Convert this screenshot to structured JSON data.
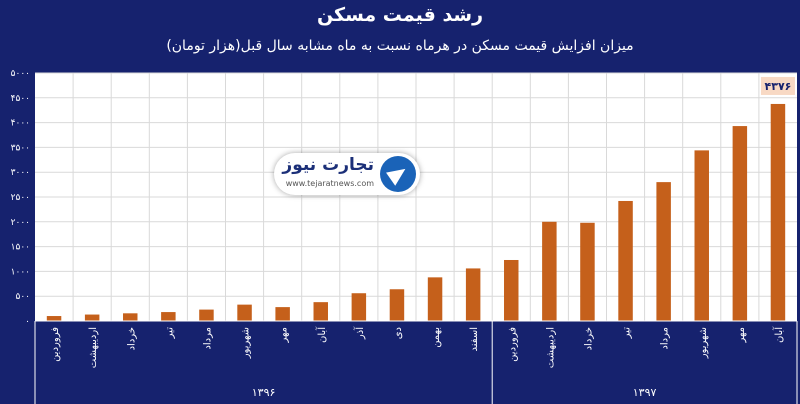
{
  "title": "رشد قیمت مسکن",
  "subtitle": "میزان افزایش قیمت مسکن در هرماه نسبت به ماه مشابه سال قبل(هزار تومان)",
  "colors": {
    "background": "#16226e",
    "plot_background": "#ffffff",
    "bar": "#c5601b",
    "grid": "#d9d9d9",
    "label_box": "#f8d9c4"
  },
  "logo": {
    "name": "تجارت نیوز",
    "url": "www.tejaratnews.com",
    "icon": "arrow-circle-icon"
  },
  "chart_data": {
    "type": "bar",
    "ylim": [
      0,
      5000
    ],
    "yticks": [
      "۰",
      "۵۰۰",
      "۱۰۰۰",
      "۱۵۰۰",
      "۲۰۰۰",
      "۲۵۰۰",
      "۳۰۰۰",
      "۳۵۰۰",
      "۴۰۰۰",
      "۴۵۰۰",
      "۵۰۰۰"
    ],
    "categories": [
      "فروردین",
      "اردیبهشت",
      "خرداد",
      "تیر",
      "مرداد",
      "شهریور",
      "مهر",
      "آبان",
      "آذر",
      "دی",
      "بهمن",
      "اسفند",
      "فروردین",
      "اردیبهشت",
      "خرداد",
      "تیر",
      "مرداد",
      "شهریور",
      "مهر",
      "آبان"
    ],
    "values": [
      100,
      130,
      155,
      180,
      230,
      330,
      280,
      380,
      560,
      640,
      880,
      1060,
      1230,
      2000,
      1980,
      2420,
      2800,
      3440,
      3930,
      4376
    ],
    "groups": [
      {
        "label": "۱۳۹۶",
        "count": 12
      },
      {
        "label": "۱۳۹۷",
        "count": 8
      }
    ],
    "data_labels": [
      {
        "index": 19,
        "text": "۴۳۷۶"
      }
    ],
    "grid": true,
    "legend": "none"
  }
}
